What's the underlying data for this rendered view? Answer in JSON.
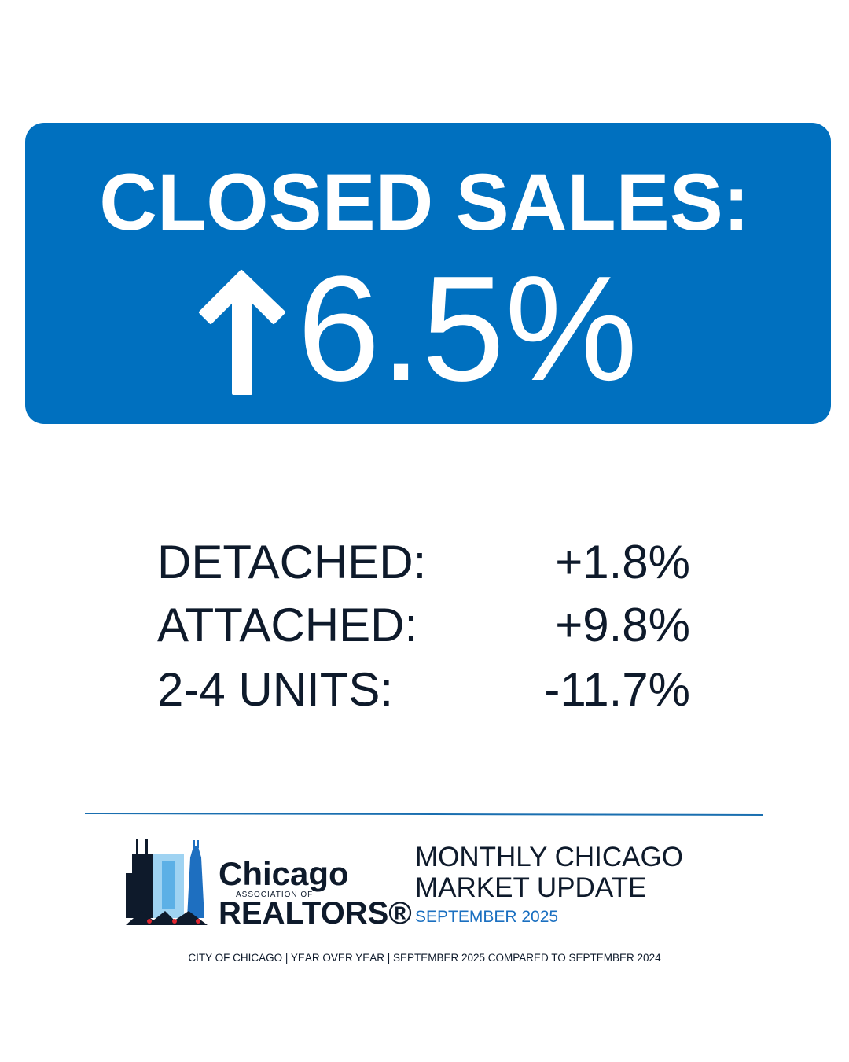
{
  "headline": {
    "title": "CLOSED SALES:",
    "value": "6.5%"
  },
  "breakdown": {
    "rows": [
      [
        "DETACHED:",
        "+1.8%"
      ],
      [
        "ATTACHED:",
        "+9.8%"
      ],
      [
        "2-4 UNITS:",
        "-11.7%"
      ]
    ]
  },
  "logo": {
    "name": "Chicago",
    "association": "ASSOCIATION OF",
    "org": "REALTORS®"
  },
  "footer": {
    "title_line1": "MONTHLY CHICAGO",
    "title_line2": "MARKET UPDATE",
    "period": "SEPTEMBER 2025",
    "note": "CITY OF CHICAGO | YEAR OVER YEAR | SEPTEMBER 2025 COMPARED TO SEPTEMBER 2024"
  }
}
